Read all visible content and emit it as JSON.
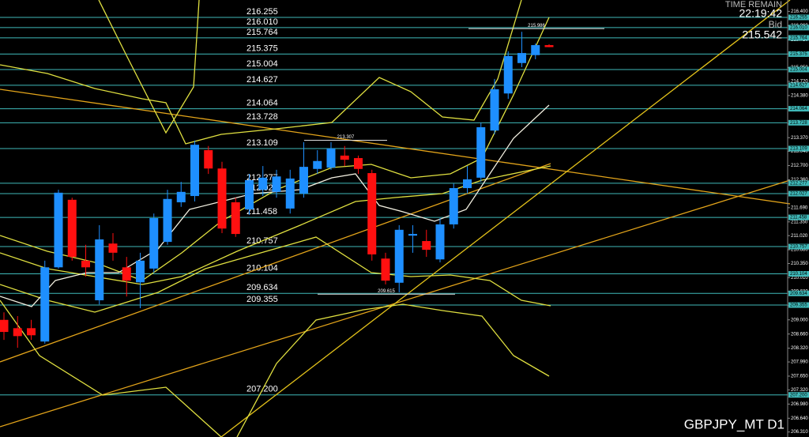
{
  "chart_data": {
    "type": "candlestick",
    "title": "GBPJPY_MT D1",
    "info": {
      "time_remain_label": "TIME REMAIN",
      "time_remain": "22:19:42",
      "bid_label": "Bid",
      "bid": 215.542
    },
    "up_color": "#1e8fff",
    "down_color": "#ff1010",
    "level_color": "#3fb9b9",
    "ylim": [
      206.19,
      216.672
    ],
    "yticks": [
      {
        "value": 216.4,
        "label": "216.400"
      },
      {
        "value": 216.06,
        "label": "216.060"
      },
      {
        "value": 215.72,
        "label": "215.720"
      },
      {
        "value": 215.38,
        "label": "215.380"
      },
      {
        "value": 215.05,
        "label": "215.050"
      },
      {
        "value": 214.72,
        "label": "214.720"
      },
      {
        "value": 214.38,
        "label": "214.380"
      },
      {
        "value": 214.04,
        "label": "214.040"
      },
      {
        "value": 213.7,
        "label": "213.700"
      },
      {
        "value": 213.37,
        "label": "213.370"
      },
      {
        "value": 213.04,
        "label": "213.040"
      },
      {
        "value": 212.7,
        "label": "212.700"
      },
      {
        "value": 212.36,
        "label": "212.360"
      },
      {
        "value": 212.03,
        "label": "212.030"
      },
      {
        "value": 211.69,
        "label": "211.690"
      },
      {
        "value": 211.35,
        "label": "211.350"
      },
      {
        "value": 211.02,
        "label": "211.020"
      },
      {
        "value": 210.68,
        "label": "210.680"
      },
      {
        "value": 210.35,
        "label": "210.350"
      },
      {
        "value": 210.01,
        "label": "210.010"
      },
      {
        "value": 209.68,
        "label": "209.680"
      },
      {
        "value": 209.34,
        "label": "209.340"
      },
      {
        "value": 209.0,
        "label": "209.000"
      },
      {
        "value": 208.66,
        "label": "208.660"
      },
      {
        "value": 208.32,
        "label": "208.320"
      },
      {
        "value": 207.99,
        "label": "207.990"
      },
      {
        "value": 207.65,
        "label": "207.650"
      },
      {
        "value": 207.32,
        "label": "207.320"
      },
      {
        "value": 206.98,
        "label": "206.980"
      },
      {
        "value": 206.64,
        "label": "206.640"
      },
      {
        "value": 206.31,
        "label": "206.310"
      }
    ],
    "levels": [
      216.255,
      {
        "value": 216.01,
        "label": "216.010"
      },
      215.764,
      215.375,
      215.004,
      214.627,
      214.064,
      213.728,
      213.109,
      212.277,
      212.027,
      211.458,
      210.757,
      210.104,
      209.634,
      209.355,
      {
        "value": 207.2,
        "label": "207.200"
      }
    ],
    "high_low_marks": [
      215.986,
      213.307,
      209.615
    ],
    "open": [
      209.0,
      208.8,
      208.8,
      208.48,
      210.26,
      211.88,
      210.42,
      209.47,
      210.83,
      210.26,
      209.9,
      210.23,
      210.87,
      211.82,
      211.97,
      213.07,
      212.63,
      211.82,
      211.65,
      212.12,
      212.07,
      211.67,
      212.03,
      212.62,
      212.65,
      212.94,
      212.88,
      212.52,
      210.47,
      209.89,
      211.02,
      210.89,
      210.45,
      211.29,
      212.16,
      212.41,
      213.54,
      214.43,
      215.16,
      215.35,
      215.59
    ],
    "high": [
      209.18,
      209.09,
      209.0,
      210.42,
      212.12,
      211.93,
      210.8,
      211.27,
      211.08,
      210.51,
      210.61,
      211.55,
      212.12,
      212.31,
      213.3,
      213.17,
      212.79,
      211.93,
      212.5,
      212.69,
      212.6,
      212.6,
      213.26,
      213.07,
      213.26,
      213.17,
      212.94,
      212.6,
      210.61,
      211.27,
      211.27,
      211.16,
      211.44,
      212.27,
      212.69,
      213.73,
      214.78,
      215.44,
      215.91,
      215.63,
      215.61
    ],
    "low": [
      208.52,
      208.33,
      208.52,
      208.43,
      210.23,
      210.42,
      210.04,
      209.37,
      210.42,
      209.56,
      209.28,
      210.13,
      210.8,
      211.71,
      211.84,
      212.5,
      211.08,
      210.99,
      211.52,
      211.97,
      211.93,
      211.55,
      211.93,
      212.5,
      212.6,
      212.69,
      212.5,
      210.42,
      209.85,
      209.66,
      210.61,
      210.51,
      210.38,
      211.19,
      212.03,
      212.31,
      213.45,
      214.3,
      215.06,
      215.25,
      215.54
    ],
    "close": [
      208.71,
      208.61,
      208.63,
      210.26,
      212.05,
      210.51,
      210.26,
      210.93,
      210.61,
      209.94,
      210.42,
      211.44,
      211.9,
      212.07,
      213.2,
      212.63,
      211.19,
      211.06,
      212.35,
      212.41,
      212.44,
      212.39,
      212.67,
      212.81,
      213.11,
      212.84,
      212.62,
      210.57,
      209.94,
      211.16,
      211.06,
      210.68,
      211.29,
      212.16,
      212.37,
      213.62,
      214.53,
      215.33,
      215.4,
      215.59,
      215.542
    ]
  }
}
